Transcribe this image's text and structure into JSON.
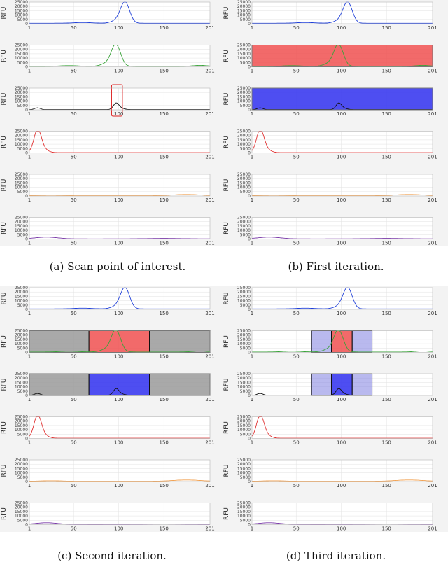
{
  "captions": {
    "a": "(a) Scan point of interest.",
    "b": "(b) First iteration.",
    "c": "(c) Second iteration.",
    "d": "(d) Third iteration."
  },
  "chart_data": {
    "type": "line",
    "ylabel": "RFU",
    "yticks": [
      "0",
      "5000",
      "10000",
      "15000",
      "20000",
      "25000"
    ],
    "xticks": [
      "1",
      "50",
      "100",
      "150",
      "201"
    ],
    "xlim": [
      1,
      201
    ],
    "ylim": [
      0,
      25000
    ],
    "grid": true,
    "series": [
      {
        "color": "#1f3fd8",
        "peaks": [
          [
            107,
            24000,
            5
          ],
          [
            98,
            3000,
            6
          ],
          [
            60,
            800,
            10
          ]
        ],
        "baseline": 600
      },
      {
        "color": "#3aa33a",
        "peaks": [
          [
            95,
            14000,
            4
          ],
          [
            100,
            11000,
            4
          ],
          [
            92,
            6000,
            8
          ],
          [
            190,
            1200,
            8
          ],
          [
            45,
            900,
            10
          ]
        ],
        "baseline": 500
      },
      {
        "color": "#111111",
        "peaks": [
          [
            97,
            7000,
            3
          ],
          [
            10,
            2000,
            3
          ],
          [
            102,
            1500,
            4
          ]
        ],
        "baseline": 300
      },
      {
        "color": "#e03030",
        "peaks": [
          [
            10,
            23000,
            4
          ],
          [
            14,
            5000,
            6
          ]
        ],
        "baseline": 300
      },
      {
        "color": "#f0a050",
        "peaks": [
          [
            175,
            1500,
            15
          ],
          [
            25,
            600,
            12
          ]
        ],
        "baseline": 300
      },
      {
        "color": "#7a3aa8",
        "peaks": [
          [
            20,
            2000,
            12
          ],
          [
            150,
            500,
            20
          ]
        ],
        "baseline": 200
      }
    ],
    "panels": [
      {
        "id": "a",
        "highlight": {
          "row": 2,
          "x": [
            92,
            104
          ],
          "kind": "outline",
          "color": "#dd2222"
        }
      },
      {
        "id": "b",
        "spans": [
          {
            "row": 1,
            "x": [
              1,
              201
            ],
            "color": "#f05050",
            "opacity": 0.85
          },
          {
            "row": 2,
            "x": [
              1,
              201
            ],
            "color": "#3b3bf0",
            "opacity": 0.9
          }
        ]
      },
      {
        "id": "c",
        "spans": [
          {
            "row": 1,
            "x": [
              1,
              67
            ],
            "color": "#9a9a9a",
            "opacity": 0.85
          },
          {
            "row": 1,
            "x": [
              67,
              134
            ],
            "color": "#f05050",
            "opacity": 0.85
          },
          {
            "row": 1,
            "x": [
              134,
              201
            ],
            "color": "#9a9a9a",
            "opacity": 0.85
          },
          {
            "row": 2,
            "x": [
              1,
              67
            ],
            "color": "#9a9a9a",
            "opacity": 0.85
          },
          {
            "row": 2,
            "x": [
              67,
              134
            ],
            "color": "#3b3bf0",
            "opacity": 0.9
          },
          {
            "row": 2,
            "x": [
              134,
              201
            ],
            "color": "#9a9a9a",
            "opacity": 0.85
          }
        ]
      },
      {
        "id": "d",
        "spans": [
          {
            "row": 1,
            "x": [
              67,
              89
            ],
            "color": "#8080e0",
            "opacity": 0.55
          },
          {
            "row": 1,
            "x": [
              89,
              112
            ],
            "color": "#f05050",
            "opacity": 0.85
          },
          {
            "row": 1,
            "x": [
              112,
              134
            ],
            "color": "#8080e0",
            "opacity": 0.55
          },
          {
            "row": 2,
            "x": [
              67,
              89
            ],
            "color": "#8080e0",
            "opacity": 0.55
          },
          {
            "row": 2,
            "x": [
              89,
              112
            ],
            "color": "#3b3bf0",
            "opacity": 0.9
          },
          {
            "row": 2,
            "x": [
              112,
              134
            ],
            "color": "#8080e0",
            "opacity": 0.55
          }
        ]
      }
    ]
  }
}
